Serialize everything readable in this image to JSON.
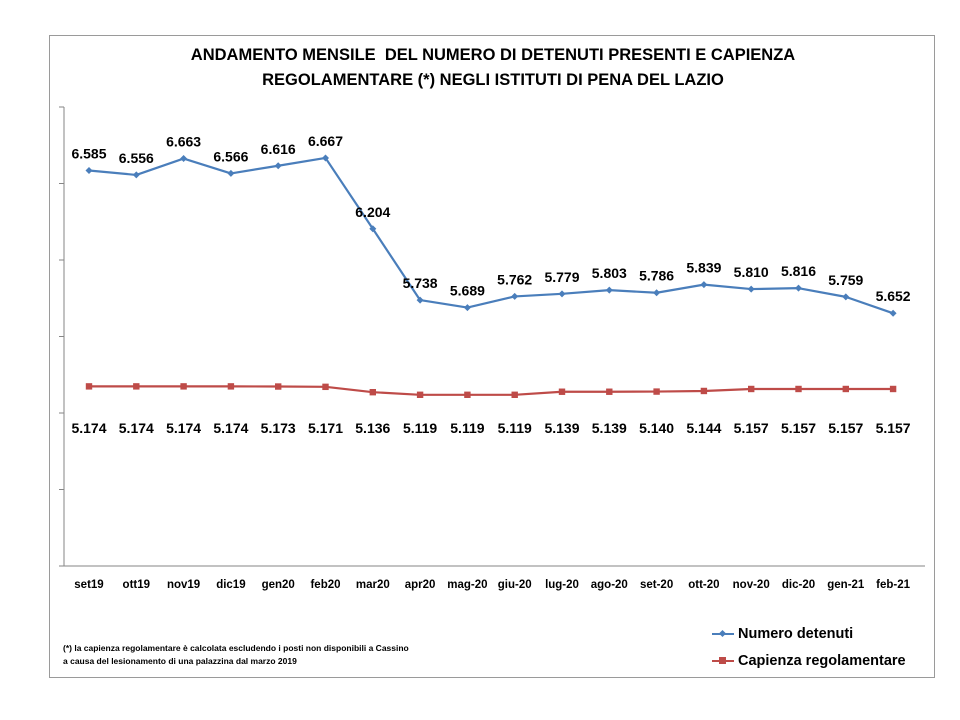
{
  "title_lines": [
    "ANDAMENTO MENSILE  DEL NUMERO DI DETENUTI PRESENTI E CAPIENZA",
    "REGOLAMENTARE (*) NEGLI ISTITUTI DI PENA DEL LAZIO"
  ],
  "note_lines": [
    "(*) la capienza regolamentare è calcolata escludendo i posti non disponibili a Cassino",
    "a causa del lesionamento di una palazzina dal marzo 2019"
  ],
  "legend": {
    "item1": "Numero detenuti",
    "item2": "Capienza regolamentare"
  },
  "colors": {
    "series1": "#4a7ebb",
    "series2": "#be4b48",
    "axis": "#868686"
  },
  "chart_data": {
    "type": "line",
    "categories": [
      "set19",
      "ott19",
      "nov19",
      "dic19",
      "gen20",
      "feb20",
      "mar20",
      "apr20",
      "mag-20",
      "giu-20",
      "lug-20",
      "ago-20",
      "set-20",
      "ott-20",
      "nov-20",
      "dic-20",
      "gen-21",
      "feb-21"
    ],
    "series": [
      {
        "name": "Numero detenuti",
        "values": [
          6585,
          6556,
          6663,
          6566,
          6616,
          6667,
          6204,
          5738,
          5689,
          5762,
          5779,
          5803,
          5786,
          5839,
          5810,
          5816,
          5759,
          5652
        ],
        "labels": [
          "6.585",
          "6.556",
          "6.663",
          "6.566",
          "6.616",
          "6.667",
          "6.204",
          "5.738",
          "5.689",
          "5.762",
          "5.779",
          "5.803",
          "5.786",
          "5.839",
          "5.810",
          "5.816",
          "5.759",
          "5.652"
        ],
        "marker": "diamond"
      },
      {
        "name": "Capienza regolamentare",
        "values": [
          5174,
          5174,
          5174,
          5174,
          5173,
          5171,
          5136,
          5119,
          5119,
          5119,
          5139,
          5139,
          5140,
          5144,
          5157,
          5157,
          5157,
          5157
        ],
        "labels": [
          "5.174",
          "5.174",
          "5.174",
          "5.174",
          "5.173",
          "5.171",
          "5.136",
          "5.119",
          "5.119",
          "5.119",
          "5.139",
          "5.139",
          "5.140",
          "5.144",
          "5.157",
          "5.157",
          "5.157",
          "5.157"
        ],
        "marker": "square"
      }
    ],
    "ylim": [
      4000,
      7000
    ],
    "y_ticks": [
      4000,
      4500,
      5000,
      5500,
      6000,
      6500,
      7000
    ],
    "y_tick_labels_shown": false,
    "grid": false,
    "legend_position": "bottom-right"
  }
}
